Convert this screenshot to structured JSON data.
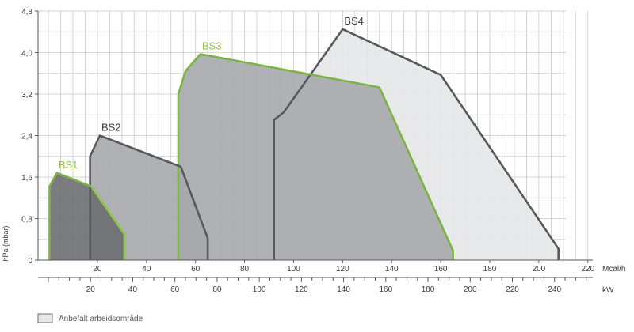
{
  "chart_data": {
    "type": "area",
    "ylabel": "hPa (mbar)",
    "x_primary_unit": "Mcal/h",
    "x_secondary_unit": "kW",
    "xlim": [
      0,
      220
    ],
    "ylim": [
      0,
      4.8
    ],
    "x_ticks": [
      "20",
      "40",
      "60",
      "80",
      "100",
      "120",
      "140",
      "160",
      "180",
      "200",
      "220"
    ],
    "y_ticks": [
      "0",
      "0,8",
      "1,6",
      "2,4",
      "3,2",
      "4,0",
      "4,8"
    ],
    "x2_ticks": [
      "20",
      "40",
      "60",
      "80",
      "100",
      "120",
      "140",
      "160",
      "180",
      "200",
      "220",
      "240"
    ],
    "grid": true,
    "legend_text": "Anbefalt arbeidsområde",
    "series": [
      {
        "name": "BS1",
        "label_color": "#8dc63f",
        "fill": "#6d6e71",
        "points": [
          {
            "x": 0.5,
            "y": 0
          },
          {
            "x": 0.5,
            "y": 1.42
          },
          {
            "x": 3.5,
            "y": 1.68
          },
          {
            "x": 17.5,
            "y": 1.42
          },
          {
            "x": 31,
            "y": 0.5
          },
          {
            "x": 31,
            "y": 0
          }
        ],
        "outline": [
          {
            "color": "#7cb342",
            "from": 0,
            "to": 3
          },
          {
            "color": "#8dc63f",
            "from": 3,
            "to": 5
          }
        ]
      },
      {
        "name": "BS2",
        "label_color": "#3a3a3a",
        "fill": "#a7a9ac",
        "points": [
          {
            "x": 17,
            "y": 0
          },
          {
            "x": 17,
            "y": 2.0
          },
          {
            "x": 21,
            "y": 2.4
          },
          {
            "x": 54,
            "y": 1.8
          },
          {
            "x": 65,
            "y": 0.42
          },
          {
            "x": 65,
            "y": 0
          }
        ],
        "outline": [
          {
            "color": "#58595b",
            "from": 0,
            "to": 5
          }
        ]
      },
      {
        "name": "BS3",
        "label_color": "#8dc63f",
        "fill": "#a7a9ac",
        "points": [
          {
            "x": 53,
            "y": 0
          },
          {
            "x": 53,
            "y": 3.2
          },
          {
            "x": 56,
            "y": 3.65
          },
          {
            "x": 62,
            "y": 3.97
          },
          {
            "x": 135,
            "y": 3.33
          },
          {
            "x": 165,
            "y": 0.18
          },
          {
            "x": 165,
            "y": 0
          }
        ],
        "outline": [
          {
            "color": "#7cb342",
            "from": 0,
            "to": 6
          }
        ]
      },
      {
        "name": "BS4",
        "label_color": "#3a3a3a",
        "fill": "#e6e7e8",
        "points": [
          {
            "x": 92,
            "y": 0
          },
          {
            "x": 92,
            "y": 2.7
          },
          {
            "x": 96,
            "y": 2.85
          },
          {
            "x": 120,
            "y": 4.45
          },
          {
            "x": 160,
            "y": 3.57
          },
          {
            "x": 208,
            "y": 0.22
          },
          {
            "x": 208,
            "y": 0
          }
        ],
        "outline": [
          {
            "color": "#58595b",
            "from": 0,
            "to": 6
          }
        ]
      }
    ]
  }
}
